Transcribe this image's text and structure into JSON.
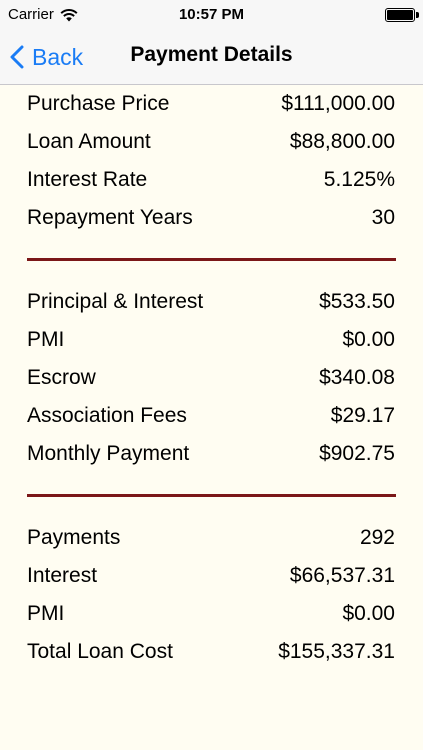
{
  "status_bar": {
    "carrier": "Carrier",
    "time": "10:57 PM",
    "wifi_icon": "wifi-icon",
    "battery_icon": "battery-icon"
  },
  "nav": {
    "back_label": "Back",
    "title": "Payment Details",
    "back_icon": "chevron-left-icon",
    "accent_color": "#1a7cf5"
  },
  "divider_color": "#7b1718",
  "loan": {
    "rows": [
      {
        "label": "Purchase Price",
        "value": "$111,000.00"
      },
      {
        "label": "Loan Amount",
        "value": "$88,800.00"
      },
      {
        "label": "Interest Rate",
        "value": "5.125%"
      },
      {
        "label": "Repayment Years",
        "value": "30"
      }
    ]
  },
  "monthly": {
    "rows": [
      {
        "label": "Principal & Interest",
        "value": "$533.50"
      },
      {
        "label": "PMI",
        "value": "$0.00"
      },
      {
        "label": "Escrow",
        "value": "$340.08"
      },
      {
        "label": "Association Fees",
        "value": "$29.17"
      },
      {
        "label": "Monthly Payment",
        "value": "$902.75"
      }
    ]
  },
  "totals": {
    "rows": [
      {
        "label": "Payments",
        "value": "292"
      },
      {
        "label": "Interest",
        "value": "$66,537.31"
      },
      {
        "label": "PMI",
        "value": "$0.00"
      },
      {
        "label": "Total Loan Cost",
        "value": "$155,337.31"
      }
    ]
  }
}
